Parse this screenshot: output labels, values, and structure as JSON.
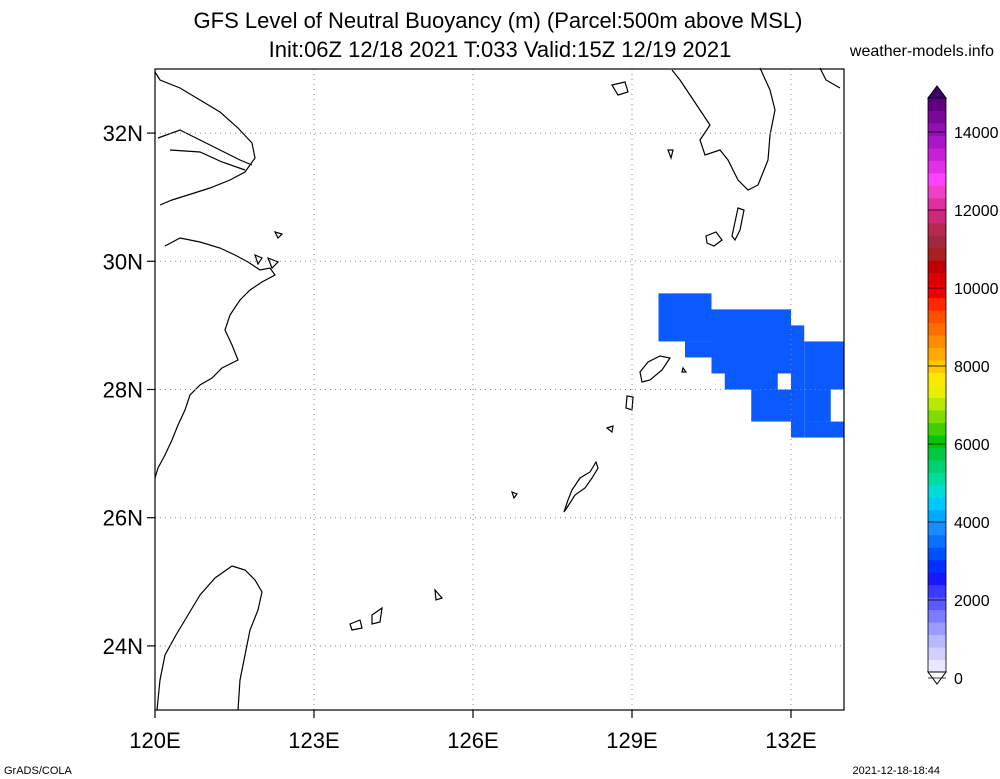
{
  "title_line1": "GFS Level of Neutral Buoyancy (m) (Parcel:500m above MSL)",
  "title_line2": "Init:06Z 12/18 2021 T:033 Valid:15Z 12/19 2021",
  "website": "weather-models.info",
  "footer_left": "GrADS/COLA",
  "footer_right": "2021-12-18-18:44",
  "map": {
    "lon_range": [
      120,
      133
    ],
    "lat_range": [
      23,
      33
    ],
    "lon_ticks": [
      {
        "v": 120,
        "label": "120E"
      },
      {
        "v": 123,
        "label": "123E"
      },
      {
        "v": 126,
        "label": "126E"
      },
      {
        "v": 129,
        "label": "129E"
      },
      {
        "v": 132,
        "label": "132E"
      }
    ],
    "lat_ticks": [
      {
        "v": 24,
        "label": "24N"
      },
      {
        "v": 26,
        "label": "26N"
      },
      {
        "v": 28,
        "label": "28N"
      },
      {
        "v": 30,
        "label": "30N"
      },
      {
        "v": 32,
        "label": "32N"
      }
    ],
    "grid": "dotted",
    "fill_color": "#0a5aff",
    "field_cells": [
      {
        "lon0": 129.5,
        "lon1": 130.5,
        "lat0": 28.75,
        "lat1": 29.5
      },
      {
        "lon0": 130.5,
        "lon1": 132.0,
        "lat0": 28.25,
        "lat1": 29.25
      },
      {
        "lon0": 130.0,
        "lon1": 130.5,
        "lat0": 28.5,
        "lat1": 28.75
      },
      {
        "lon0": 130.75,
        "lon1": 131.75,
        "lat0": 28.0,
        "lat1": 28.25
      },
      {
        "lon0": 131.25,
        "lon1": 132.0,
        "lat0": 27.5,
        "lat1": 28.0
      },
      {
        "lon0": 132.0,
        "lon1": 132.25,
        "lat0": 27.25,
        "lat1": 29.0
      },
      {
        "lon0": 132.25,
        "lon1": 133.0,
        "lat0": 28.0,
        "lat1": 28.75
      },
      {
        "lon0": 132.25,
        "lon1": 132.75,
        "lat0": 27.5,
        "lat1": 28.0
      },
      {
        "lon0": 132.25,
        "lon1": 133.0,
        "lat0": 27.25,
        "lat1": 27.5
      }
    ]
  },
  "colorbar": {
    "labels": [
      "0",
      "2000",
      "4000",
      "6000",
      "8000",
      "10000",
      "12000",
      "14000"
    ],
    "colors": [
      "#e8e8ff",
      "#d0d0ff",
      "#b8b8ff",
      "#9c9cff",
      "#7c7cff",
      "#5a5aff",
      "#3a3aff",
      "#1818ff",
      "#0032ff",
      "#0050ff",
      "#0a70ff",
      "#1a8cff",
      "#00a8ff",
      "#00c8ff",
      "#00dcd8",
      "#00dca0",
      "#00d070",
      "#00c840",
      "#00c800",
      "#40d000",
      "#80dc00",
      "#b8e800",
      "#e8f000",
      "#ffe800",
      "#ffc800",
      "#ffaa00",
      "#ff8c00",
      "#ff6e00",
      "#ff5000",
      "#ff2800",
      "#f00000",
      "#dc0000",
      "#c00000",
      "#a82020",
      "#a02840",
      "#b82850",
      "#d02878",
      "#e030a0",
      "#f040c8",
      "#ff40ff",
      "#e030e8",
      "#c820d8",
      "#a818c8",
      "#9010b0",
      "#780898",
      "#600080"
    ]
  }
}
